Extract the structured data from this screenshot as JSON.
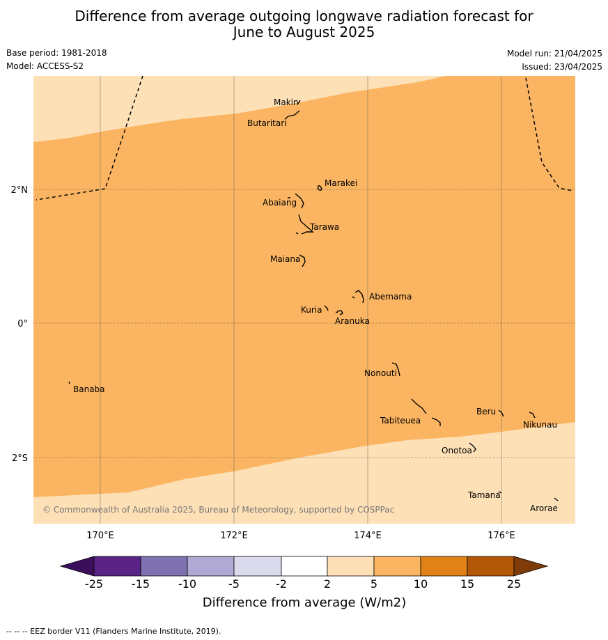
{
  "title": {
    "line1": "Difference from average outgoing longwave radiation forecast for",
    "line2": "June to August 2025"
  },
  "meta": {
    "base_period": "Base period: 1981-2018",
    "model": "Model: ACCESS-S2",
    "model_run": "Model run: 21/04/2025",
    "issued": "Issued: 23/04/2025"
  },
  "map": {
    "lat_labels": [
      "2°N",
      "0°",
      "2°S"
    ],
    "lon_labels": [
      "170°E",
      "172°E",
      "174°E",
      "176°E"
    ],
    "places": [
      "Makin",
      "Butaritari",
      "Marakei",
      "Abaiang",
      "Tarawa",
      "Maiana",
      "Abemama",
      "Kuria",
      "Aranuka",
      "Nonouti",
      "Banaba",
      "Beru",
      "Tabiteuea",
      "Nikunau",
      "Onotoa",
      "Tamana",
      "Arorae"
    ],
    "copyright": "© Commonwealth of Australia 2025, Bureau of Meteorology, supported by COSPPac",
    "colors": {
      "band_2_5": "#fde0b6",
      "band_5_10": "#fbb562",
      "eez_border": "#000000"
    }
  },
  "legend": {
    "tick_labels": [
      "-25",
      "-15",
      "-10",
      "-5",
      "-2",
      "2",
      "5",
      "10",
      "15",
      "25"
    ],
    "colors": [
      "#3c0f5c",
      "#5a2487",
      "#8071b0",
      "#b0a9d3",
      "#dadaec",
      "#ffffff",
      "#fde0b6",
      "#fbb562",
      "#e08218",
      "#b35806",
      "#7f3b08"
    ],
    "label": "Difference from average (W/m2)"
  },
  "footnote": "--  --  -- EEZ border V11 (Flanders Marine Institute, 2019)."
}
